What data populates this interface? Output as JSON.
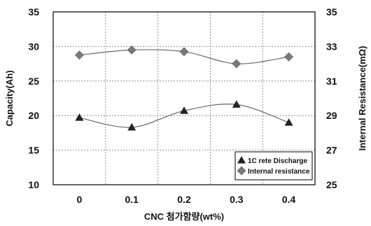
{
  "chart_data": {
    "type": "scatter",
    "x": [
      "0",
      "0.1",
      "0.2",
      "0.3",
      "0.4"
    ],
    "xlabel": "CNC 첨가함량(wt%)",
    "ylabel": "Capacity(Ah)",
    "ylabel_right": "Internal Resistance(mΩ)",
    "ylim": [
      10,
      35
    ],
    "ylim_right": [
      25,
      35
    ],
    "yticks": [
      "10",
      "15",
      "20",
      "25",
      "30",
      "35"
    ],
    "yticks_right": [
      "25",
      "27",
      "29",
      "31",
      "33",
      "35"
    ],
    "grid": true,
    "legend_position": "bottom-right",
    "series": [
      {
        "name": "1C rete Discharge",
        "axis": "left",
        "marker": "triangle",
        "color": "#222222",
        "values": [
          19.7,
          18.3,
          20.7,
          21.6,
          19.0
        ]
      },
      {
        "name": "Internal resistance",
        "axis": "right",
        "marker": "diamond",
        "color": "#7a7a7a",
        "values": [
          32.5,
          32.8,
          32.7,
          32.0,
          32.4
        ]
      }
    ]
  }
}
